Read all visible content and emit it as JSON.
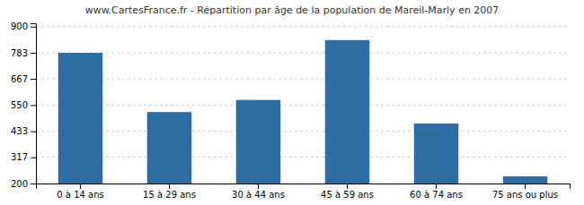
{
  "chart_data": {
    "type": "bar",
    "title": "www.CartesFrance.fr - Répartition par âge de la population de Mareil-Marly en 2007",
    "categories": [
      "0 à 14 ans",
      "15 à 29 ans",
      "30 à 44 ans",
      "45 à 59 ans",
      "60 à 74 ans",
      "75 ans ou plus"
    ],
    "values": [
      783,
      519,
      573,
      840,
      468,
      232
    ],
    "color": "#2e6da4",
    "ylim": [
      200,
      915
    ],
    "yticks": [
      200,
      317,
      433,
      550,
      667,
      783,
      900
    ],
    "grid": true
  }
}
